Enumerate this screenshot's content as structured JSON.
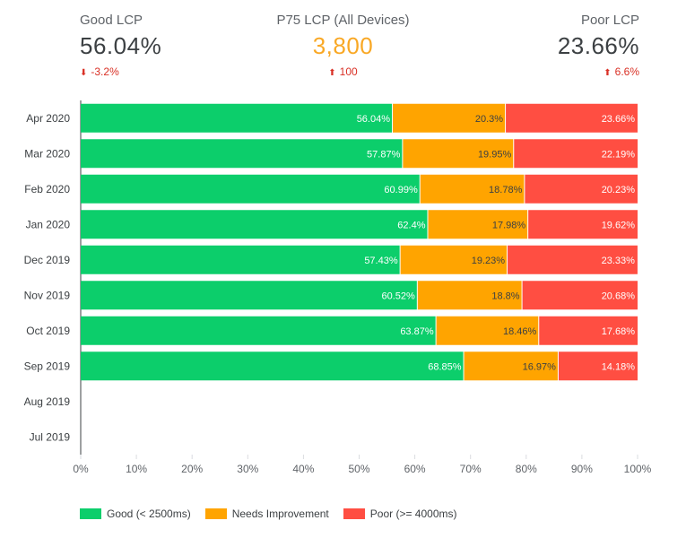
{
  "kpis": {
    "good": {
      "label": "Good LCP",
      "value": "56.04%",
      "delta": "-3.2%",
      "arrow": "⬇"
    },
    "p75": {
      "label": "P75 LCP (All Devices)",
      "value": "3,800",
      "delta": "100",
      "arrow": "⬆"
    },
    "poor": {
      "label": "Poor LCP",
      "value": "23.66%",
      "delta": "6.6%",
      "arrow": "⬆"
    }
  },
  "colors": {
    "good": "#0cce6b",
    "needs_improvement": "#ffa400",
    "poor": "#ff4e42",
    "axis": "#3c4043",
    "grid": "#dadce0"
  },
  "legend": {
    "good": "Good (< 2500ms)",
    "needs_improvement": "Needs Improvement",
    "poor": "Poor (>= 4000ms)"
  },
  "chart_data": {
    "type": "bar",
    "orientation": "horizontal",
    "stacked": true,
    "title": "",
    "xlabel": "",
    "ylabel": "",
    "xlim": [
      0,
      100
    ],
    "x_ticks": [
      "0%",
      "10%",
      "20%",
      "30%",
      "40%",
      "50%",
      "60%",
      "70%",
      "80%",
      "90%",
      "100%"
    ],
    "categories": [
      "Apr 2020",
      "Mar 2020",
      "Feb 2020",
      "Jan 2020",
      "Dec 2019",
      "Nov 2019",
      "Oct 2019",
      "Sep 2019",
      "Aug 2019",
      "Jul 2019"
    ],
    "series": [
      {
        "name": "Good (< 2500ms)",
        "color": "#0cce6b",
        "values": [
          56.04,
          57.87,
          60.99,
          62.4,
          57.43,
          60.52,
          63.87,
          68.85,
          null,
          null
        ]
      },
      {
        "name": "Needs Improvement",
        "color": "#ffa400",
        "values": [
          20.3,
          19.95,
          18.78,
          17.98,
          19.23,
          18.8,
          18.46,
          16.97,
          null,
          null
        ]
      },
      {
        "name": "Poor (>= 4000ms)",
        "color": "#ff4e42",
        "values": [
          23.66,
          22.19,
          20.23,
          19.62,
          23.33,
          20.68,
          17.68,
          14.18,
          null,
          null
        ]
      }
    ],
    "legend_position": "bottom-left"
  }
}
